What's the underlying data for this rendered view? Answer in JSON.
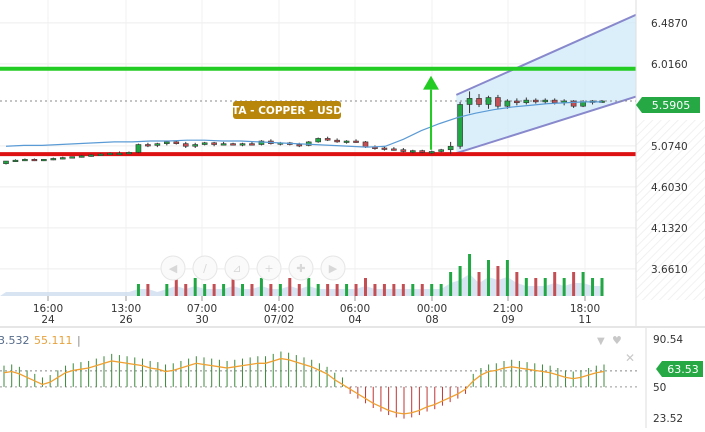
{
  "chart_data": [
    {
      "type": "candlestick",
      "title": "TA - COPPER - USD",
      "y_axis_ticks": [
        "6.4870",
        "6.0160",
        "5.0740",
        "4.6030",
        "4.1320",
        "3.6610"
      ],
      "tick_values": [
        6.487,
        6.016,
        5.074,
        4.603,
        4.132,
        3.661
      ],
      "ylim": [
        3.35,
        6.75
      ],
      "last_price": "5.5905",
      "last_price_value": 5.5905,
      "time_ticks": [
        {
          "top": "16:00",
          "bottom": "24"
        },
        {
          "top": "13:00",
          "bottom": "26"
        },
        {
          "top": "07:00",
          "bottom": "30"
        },
        {
          "top": "04:00",
          "bottom": "07/02"
        },
        {
          "top": "06:00",
          "bottom": "04"
        },
        {
          "top": "00:00",
          "bottom": "08"
        },
        {
          "top": "21:00",
          "bottom": "09"
        },
        {
          "top": "18:00",
          "bottom": "11"
        }
      ],
      "resistance_level": 5.96,
      "support_level": 4.98,
      "trend_channel": {
        "upper": [
          5.66,
          6.58
        ],
        "lower": [
          4.99,
          5.64
        ]
      },
      "candles": [
        [
          4.87,
          4.9,
          4.86,
          4.9
        ],
        [
          4.9,
          4.92,
          4.89,
          4.91
        ],
        [
          4.91,
          4.93,
          4.9,
          4.92
        ],
        [
          4.92,
          4.93,
          4.9,
          4.91
        ],
        [
          4.91,
          4.92,
          4.9,
          4.92
        ],
        [
          4.92,
          4.94,
          4.91,
          4.93
        ],
        [
          4.93,
          4.95,
          4.92,
          4.94
        ],
        [
          4.94,
          4.95,
          4.93,
          4.95
        ],
        [
          4.95,
          4.97,
          4.94,
          4.96
        ],
        [
          4.96,
          4.98,
          4.95,
          4.97
        ],
        [
          4.97,
          4.99,
          4.96,
          4.98
        ],
        [
          4.98,
          5.0,
          4.97,
          4.99
        ],
        [
          4.99,
          5.01,
          4.98,
          4.99
        ],
        [
          4.99,
          5.01,
          4.98,
          5.0
        ],
        [
          5.0,
          5.1,
          4.99,
          5.09
        ],
        [
          5.09,
          5.11,
          5.06,
          5.08
        ],
        [
          5.08,
          5.11,
          5.06,
          5.1
        ],
        [
          5.1,
          5.13,
          5.08,
          5.12
        ],
        [
          5.12,
          5.13,
          5.09,
          5.1
        ],
        [
          5.1,
          5.12,
          5.05,
          5.07
        ],
        [
          5.07,
          5.11,
          5.05,
          5.09
        ],
        [
          5.09,
          5.12,
          5.08,
          5.11
        ],
        [
          5.11,
          5.12,
          5.07,
          5.09
        ],
        [
          5.09,
          5.12,
          5.08,
          5.1
        ],
        [
          5.1,
          5.11,
          5.08,
          5.09
        ],
        [
          5.09,
          5.11,
          5.07,
          5.1
        ],
        [
          5.1,
          5.12,
          5.08,
          5.09
        ],
        [
          5.09,
          5.14,
          5.08,
          5.13
        ],
        [
          5.13,
          5.15,
          5.09,
          5.1
        ],
        [
          5.1,
          5.12,
          5.08,
          5.11
        ],
        [
          5.11,
          5.12,
          5.08,
          5.09
        ],
        [
          5.09,
          5.11,
          5.06,
          5.08
        ],
        [
          5.08,
          5.13,
          5.07,
          5.12
        ],
        [
          5.12,
          5.17,
          5.11,
          5.16
        ],
        [
          5.16,
          5.18,
          5.13,
          5.14
        ],
        [
          5.14,
          5.16,
          5.11,
          5.12
        ],
        [
          5.12,
          5.14,
          5.1,
          5.13
        ],
        [
          5.13,
          5.15,
          5.11,
          5.12
        ],
        [
          5.12,
          5.13,
          5.05,
          5.06
        ],
        [
          5.06,
          5.08,
          5.03,
          5.05
        ],
        [
          5.05,
          5.07,
          5.02,
          5.04
        ],
        [
          5.04,
          5.06,
          5.02,
          5.03
        ],
        [
          5.03,
          5.05,
          5.0,
          5.01
        ],
        [
          5.01,
          5.03,
          4.99,
          5.02
        ],
        [
          5.02,
          5.03,
          4.99,
          5.0
        ],
        [
          5.0,
          5.02,
          4.98,
          5.01
        ],
        [
          5.01,
          5.04,
          5.0,
          5.03
        ],
        [
          5.03,
          5.12,
          4.98,
          5.07
        ],
        [
          5.07,
          5.58,
          5.04,
          5.55
        ],
        [
          5.55,
          5.7,
          5.45,
          5.62
        ],
        [
          5.62,
          5.67,
          5.52,
          5.55
        ],
        [
          5.55,
          5.65,
          5.5,
          5.63
        ],
        [
          5.63,
          5.66,
          5.5,
          5.53
        ],
        [
          5.53,
          5.61,
          5.5,
          5.59
        ],
        [
          5.59,
          5.62,
          5.54,
          5.57
        ],
        [
          5.57,
          5.63,
          5.55,
          5.6
        ],
        [
          5.6,
          5.62,
          5.56,
          5.58
        ],
        [
          5.58,
          5.62,
          5.56,
          5.6
        ],
        [
          5.6,
          5.62,
          5.55,
          5.57
        ],
        [
          5.57,
          5.61,
          5.54,
          5.59
        ],
        [
          5.59,
          5.6,
          5.51,
          5.53
        ],
        [
          5.53,
          5.6,
          5.52,
          5.58
        ],
        [
          5.58,
          5.6,
          5.55,
          5.59
        ],
        [
          5.59,
          5.6,
          5.57,
          5.59
        ]
      ],
      "volume": [
        1,
        1,
        1,
        1,
        1,
        1,
        1,
        1,
        1,
        1,
        1,
        1,
        1,
        1,
        2,
        2,
        1,
        2,
        3,
        2,
        3,
        2,
        2,
        2,
        3,
        2,
        2,
        3,
        2,
        2,
        3,
        2,
        3,
        2,
        2,
        2,
        2,
        2,
        3,
        2,
        2,
        2,
        2,
        2,
        2,
        2,
        2,
        4,
        5,
        7,
        4,
        6,
        5,
        6,
        4,
        3,
        3,
        3,
        4,
        3,
        4,
        4,
        3,
        3
      ],
      "ma_line": [
        5.07,
        5.08,
        5.08,
        5.09,
        5.1,
        5.11,
        5.12,
        5.12,
        5.13,
        5.13,
        5.14,
        5.14,
        5.13,
        5.13,
        5.12,
        5.11,
        5.1,
        5.09,
        5.08,
        5.07,
        5.06,
        5.07,
        5.15,
        5.25,
        5.33,
        5.4,
        5.45,
        5.49,
        5.52,
        5.54,
        5.56,
        5.57,
        5.58,
        5.58
      ]
    },
    {
      "type": "line",
      "indicator_values": [
        "3.532",
        "55.111"
      ],
      "y_axis_ticks": [
        "90.54",
        "50",
        "23.52"
      ],
      "tick_values": [
        90.54,
        50,
        23.52
      ],
      "ylim": [
        15,
        100
      ],
      "last_value": "63.53",
      "last_value_num": 63.53,
      "signal_line": [
        62,
        63,
        61,
        58,
        55,
        52,
        54,
        58,
        62,
        64,
        65,
        66,
        68,
        70,
        72,
        71,
        70,
        69,
        68,
        66,
        65,
        63,
        64,
        66,
        68,
        70,
        69,
        68,
        67,
        66,
        67,
        68,
        69,
        70,
        70,
        72,
        74,
        73,
        71,
        69,
        67,
        64,
        61,
        56,
        52,
        48,
        44,
        40,
        36,
        33,
        30,
        28,
        27,
        28,
        30,
        33,
        35,
        38,
        41,
        44,
        48,
        55,
        60,
        63,
        64,
        66,
        67,
        66,
        65,
        64,
        63,
        62,
        60,
        58,
        57,
        58,
        60,
        62,
        63
      ]
    }
  ],
  "colors": {
    "up": "#22a745",
    "down": "#c34e53",
    "resistance": "#22cc22",
    "support": "#dd1111",
    "channel_fill": "#cfe9fa",
    "channel_line": "#8888cc",
    "title_bg": "#b8860b",
    "price_badge": "#26a945",
    "indicator_line": "#f0a030"
  },
  "toolbar_icons": [
    "chevron-left-icon",
    "draw-line-icon",
    "draw-shape-icon",
    "add-draw-icon",
    "add-indicator-icon",
    "chevron-right-icon"
  ]
}
